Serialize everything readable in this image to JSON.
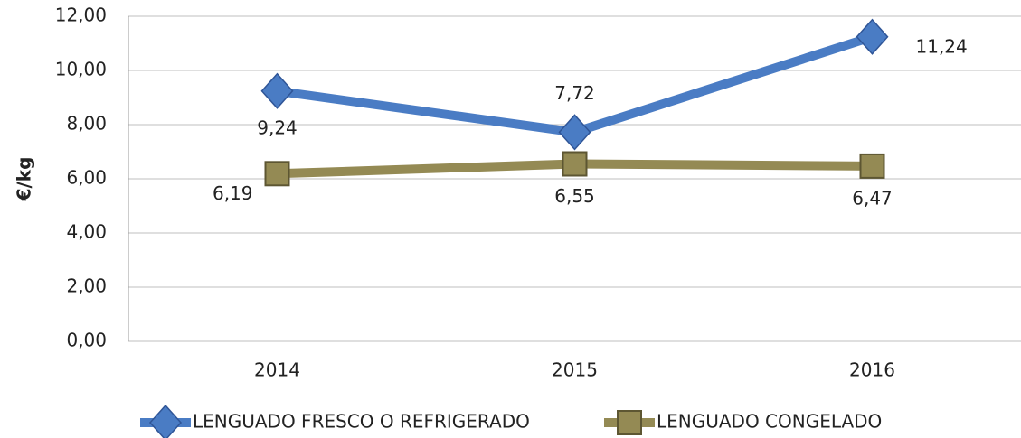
{
  "chart_data": {
    "type": "line",
    "y_label": "€/kg",
    "categories": [
      "2014",
      "2015",
      "2016"
    ],
    "series": [
      {
        "name": "LENGUADO FRESCO O REFRIGERADO",
        "color": "#4a7cc4",
        "values": [
          9.24,
          7.72,
          11.24
        ],
        "value_labels": [
          "9,24",
          "7,72",
          "11,24"
        ]
      },
      {
        "name": "LENGUADO CONGELADO",
        "color": "#948a54",
        "values": [
          6.19,
          6.55,
          6.47
        ],
        "value_labels": [
          "6,19",
          "6,55",
          "6,47"
        ]
      }
    ],
    "ylim": [
      0,
      12
    ],
    "yticks": [
      {
        "value": 0,
        "label": "0,00"
      },
      {
        "value": 2,
        "label": "2,00"
      },
      {
        "value": 4,
        "label": "4,00"
      },
      {
        "value": 6,
        "label": "6,00"
      },
      {
        "value": 8,
        "label": "8,00"
      },
      {
        "value": 10,
        "label": "10,00"
      },
      {
        "value": 12,
        "label": "12,00"
      }
    ],
    "grid": true,
    "legend": "bottom"
  }
}
